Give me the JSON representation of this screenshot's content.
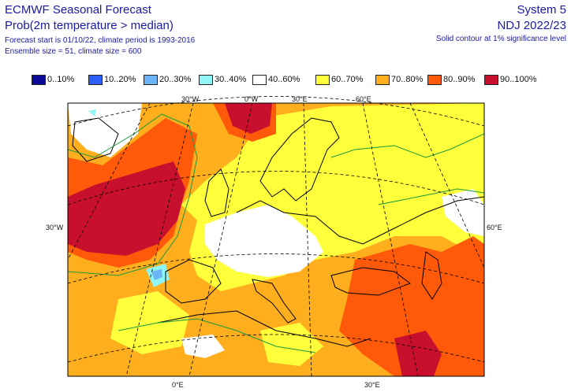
{
  "header": {
    "title": "ECMWF Seasonal Forecast",
    "subtitle": "Prob(2m temperature > median)",
    "line1": "Forecast start is 01/10/22, climate period is 1993-2016",
    "line2": "Ensemble size = 51, climate size = 600",
    "system": "System 5",
    "period": "NDJ 2022/23",
    "note": "Solid contour at 1% significance level"
  },
  "legend": [
    {
      "label": "0..10%",
      "color": "#0a0a96"
    },
    {
      "label": "10..20%",
      "color": "#2e5ef8"
    },
    {
      "label": "20..30%",
      "color": "#6ab3f5"
    },
    {
      "label": "30..40%",
      "color": "#8ff5f5"
    },
    {
      "label": "40..60%",
      "color": "#ffffff"
    },
    {
      "label": "60..70%",
      "color": "#ffff3c"
    },
    {
      "label": "70..80%",
      "color": "#ffae1e"
    },
    {
      "label": "80..90%",
      "color": "#ff5a0a"
    },
    {
      "label": "90..100%",
      "color": "#c8102e"
    }
  ],
  "map": {
    "lon_top": [
      "30°W",
      "0°W",
      "30°E",
      "60°E"
    ],
    "lon_bottom": [
      "0°E",
      "30°E"
    ],
    "lat_left": "30°W",
    "lat_right": "60°E"
  }
}
